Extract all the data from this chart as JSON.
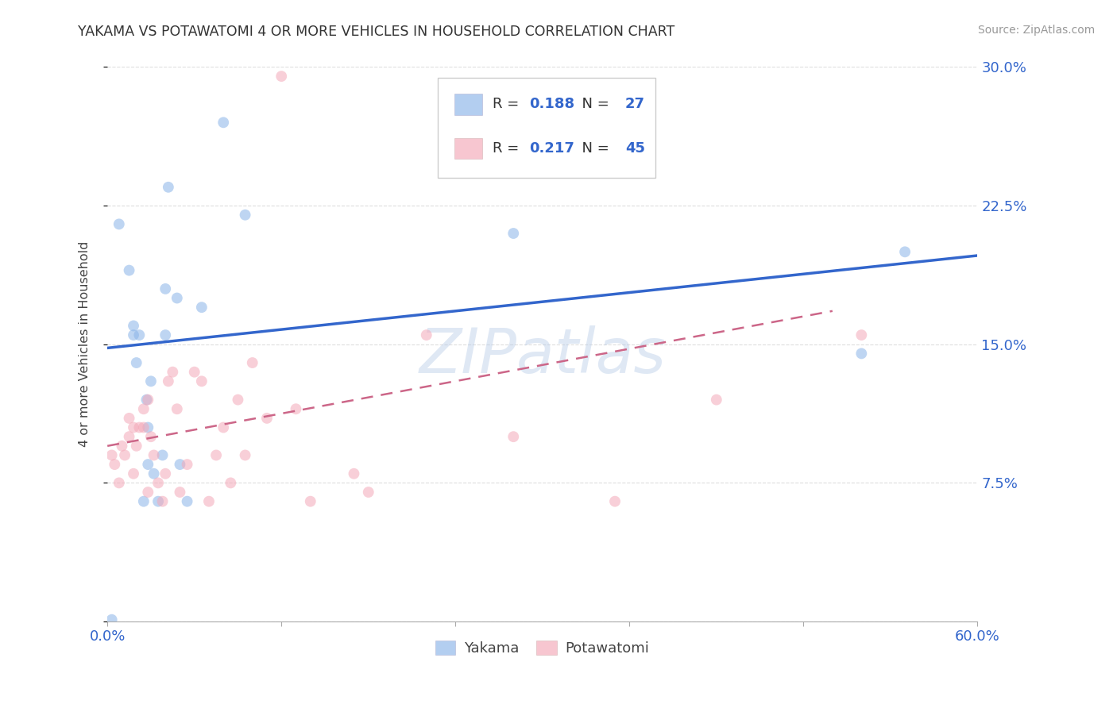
{
  "title": "YAKAMA VS POTAWATOMI 4 OR MORE VEHICLES IN HOUSEHOLD CORRELATION CHART",
  "source": "Source: ZipAtlas.com",
  "ylabel": "4 or more Vehicles in Household",
  "xlim": [
    0.0,
    0.6
  ],
  "ylim": [
    0.0,
    0.3
  ],
  "xtick_positions": [
    0.0,
    0.12,
    0.24,
    0.36,
    0.48,
    0.6
  ],
  "xticklabels": [
    "0.0%",
    "",
    "",
    "",
    "",
    "60.0%"
  ],
  "ytick_positions": [
    0.0,
    0.075,
    0.15,
    0.225,
    0.3
  ],
  "yticklabels_right": [
    "",
    "7.5%",
    "15.0%",
    "22.5%",
    "30.0%"
  ],
  "watermark": "ZIPatlas",
  "yakama_color": "#8ab4e8",
  "potawatomi_color": "#f4a8b8",
  "line1_color": "#3366cc",
  "line2_color": "#cc6688",
  "yakama_x": [
    0.003,
    0.008,
    0.015,
    0.018,
    0.018,
    0.02,
    0.022,
    0.025,
    0.027,
    0.028,
    0.028,
    0.03,
    0.032,
    0.035,
    0.038,
    0.04,
    0.04,
    0.042,
    0.048,
    0.05,
    0.055,
    0.065,
    0.08,
    0.095,
    0.28,
    0.52,
    0.55
  ],
  "yakama_y": [
    0.001,
    0.215,
    0.19,
    0.155,
    0.16,
    0.14,
    0.155,
    0.065,
    0.12,
    0.085,
    0.105,
    0.13,
    0.08,
    0.065,
    0.09,
    0.155,
    0.18,
    0.235,
    0.175,
    0.085,
    0.065,
    0.17,
    0.27,
    0.22,
    0.21,
    0.145,
    0.2
  ],
  "potawatomi_x": [
    0.003,
    0.005,
    0.008,
    0.01,
    0.012,
    0.015,
    0.015,
    0.018,
    0.018,
    0.02,
    0.022,
    0.025,
    0.025,
    0.028,
    0.028,
    0.03,
    0.032,
    0.035,
    0.038,
    0.04,
    0.042,
    0.045,
    0.048,
    0.05,
    0.055,
    0.06,
    0.065,
    0.07,
    0.075,
    0.08,
    0.085,
    0.09,
    0.095,
    0.1,
    0.11,
    0.12,
    0.13,
    0.14,
    0.17,
    0.18,
    0.22,
    0.28,
    0.35,
    0.42,
    0.52
  ],
  "potawatomi_y": [
    0.09,
    0.085,
    0.075,
    0.095,
    0.09,
    0.1,
    0.11,
    0.08,
    0.105,
    0.095,
    0.105,
    0.105,
    0.115,
    0.07,
    0.12,
    0.1,
    0.09,
    0.075,
    0.065,
    0.08,
    0.13,
    0.135,
    0.115,
    0.07,
    0.085,
    0.135,
    0.13,
    0.065,
    0.09,
    0.105,
    0.075,
    0.12,
    0.09,
    0.14,
    0.11,
    0.295,
    0.115,
    0.065,
    0.08,
    0.07,
    0.155,
    0.1,
    0.065,
    0.12,
    0.155
  ],
  "marker_size": 100,
  "marker_alpha": 0.55,
  "line1_x": [
    0.0,
    0.6
  ],
  "line1_y": [
    0.148,
    0.198
  ],
  "line2_x": [
    0.0,
    0.5
  ],
  "line2_y": [
    0.095,
    0.168
  ],
  "legend1_R": "0.188",
  "legend1_N": "27",
  "legend2_R": "0.217",
  "legend2_N": "45",
  "legend1_patch_color": "#8ab4e8",
  "legend2_patch_color": "#f4a8b8",
  "legend_text_color": "#333333",
  "legend_number_color": "#3366cc",
  "tick_label_color": "#3366cc",
  "title_color": "#333333",
  "source_color": "#999999",
  "grid_color": "#dddddd",
  "spine_color": "#aaaaaa"
}
